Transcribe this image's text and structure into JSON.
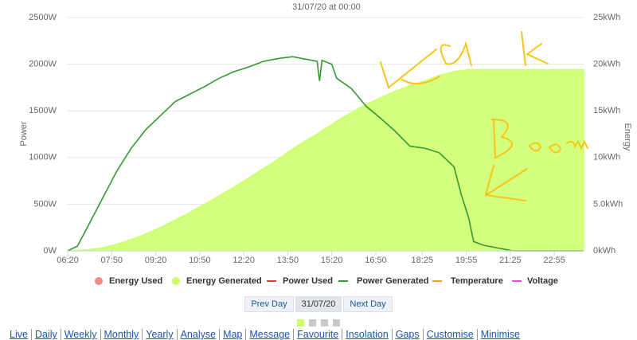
{
  "chart_data": {
    "type": "line",
    "title": "31/07/20 at 00:00",
    "y_label": "Power",
    "y2_label": "Energy",
    "x": [
      "06:20",
      "06:40",
      "07:00",
      "07:30",
      "08:00",
      "08:30",
      "09:00",
      "09:30",
      "10:00",
      "10:30",
      "11:00",
      "11:30",
      "12:00",
      "12:30",
      "13:00",
      "13:30",
      "14:00",
      "14:30",
      "14:50",
      "14:55",
      "15:00",
      "15:20",
      "15:30",
      "16:00",
      "16:30",
      "17:00",
      "17:30",
      "18:00",
      "18:30",
      "19:00",
      "19:30",
      "19:45",
      "20:00",
      "20:10",
      "20:30",
      "21:00",
      "21:30",
      "22:00",
      "22:30",
      "23:00",
      "23:30",
      "23:55"
    ],
    "xlim": [
      "06:20",
      "23:55"
    ],
    "xticks": [
      "06:20",
      "07:50",
      "09:20",
      "10:50",
      "12:20",
      "13:50",
      "15:20",
      "16:50",
      "18:25",
      "19:55",
      "21:25",
      "22:55"
    ],
    "ylim": [
      0,
      2500
    ],
    "yticks": [
      {
        "value": 0,
        "label": "0W"
      },
      {
        "value": 500,
        "label": "500W"
      },
      {
        "value": 1000,
        "label": "1000W"
      },
      {
        "value": 1500,
        "label": "1500W"
      },
      {
        "value": 2000,
        "label": "2000W"
      },
      {
        "value": 2500,
        "label": "2500W"
      }
    ],
    "y2lim": [
      0,
      25
    ],
    "y2ticks": [
      {
        "value": 0,
        "label": "0kWh"
      },
      {
        "value": 5,
        "label": "5.0kWh"
      },
      {
        "value": 10,
        "label": "10kWh"
      },
      {
        "value": 15,
        "label": "15kWh"
      },
      {
        "value": 20,
        "label": "20kWh"
      },
      {
        "value": 25,
        "label": "25kWh"
      }
    ],
    "grid": true,
    "series": [
      {
        "name": "Energy Used",
        "color": "#f28b8b",
        "axis": "y2",
        "values": [
          null,
          null,
          null,
          null,
          null,
          null,
          null,
          null,
          null,
          null,
          null,
          null,
          null,
          null,
          null,
          null,
          null,
          null,
          null,
          null,
          null,
          null,
          null,
          null,
          null,
          null,
          null,
          null,
          null,
          null,
          null,
          null,
          null,
          null,
          null,
          null,
          null,
          null,
          null,
          null,
          null,
          null
        ]
      },
      {
        "name": "Energy Generated",
        "color": "#ccff66",
        "axis": "y2",
        "values": [
          0,
          0.05,
          0.1,
          0.3,
          0.7,
          1.2,
          1.8,
          2.5,
          3.3,
          4.1,
          5.0,
          5.9,
          6.8,
          7.8,
          8.8,
          9.8,
          10.9,
          11.9,
          12.5,
          12.7,
          12.9,
          13.5,
          13.9,
          14.8,
          15.7,
          16.4,
          17.1,
          17.7,
          18.2,
          18.8,
          19.2,
          19.3,
          19.4,
          19.4,
          19.4,
          19.4,
          19.4,
          19.4,
          19.4,
          19.4,
          19.4,
          19.4
        ]
      },
      {
        "name": "Power Used",
        "color": "#e03c3c",
        "values": [
          null,
          null,
          null,
          null,
          null,
          null,
          null,
          null,
          null,
          null,
          null,
          null,
          null,
          null,
          null,
          null,
          null,
          null,
          null,
          null,
          null,
          null,
          null,
          null,
          null,
          null,
          null,
          null,
          null,
          null,
          null,
          null,
          null,
          null,
          null,
          null,
          null,
          null,
          null,
          null,
          null,
          null
        ]
      },
      {
        "name": "Power Generated",
        "color": "#339933",
        "values": [
          0,
          50,
          250,
          550,
          850,
          1100,
          1300,
          1450,
          1600,
          1680,
          1760,
          1850,
          1920,
          1970,
          2030,
          2060,
          2080,
          2050,
          2030,
          1820,
          2040,
          2000,
          1850,
          1740,
          1550,
          1420,
          1280,
          1120,
          1100,
          1050,
          900,
          600,
          350,
          100,
          60,
          30,
          0,
          0,
          0,
          0,
          0,
          0
        ]
      },
      {
        "name": "Temperature",
        "color": "#f0a030",
        "values": [
          null,
          null,
          null,
          null,
          null,
          null,
          null,
          null,
          null,
          null,
          null,
          null,
          null,
          null,
          null,
          null,
          null,
          null,
          null,
          null,
          null,
          null,
          null,
          null,
          null,
          null,
          null,
          null,
          null,
          null,
          null,
          null,
          null,
          null,
          null,
          null,
          null,
          null,
          null,
          null,
          null,
          null
        ]
      },
      {
        "name": "Voltage",
        "color": "#e050e0",
        "values": [
          null,
          null,
          null,
          null,
          null,
          null,
          null,
          null,
          null,
          null,
          null,
          null,
          null,
          null,
          null,
          null,
          null,
          null,
          null,
          null,
          null,
          null,
          null,
          null,
          null,
          null,
          null,
          null,
          null,
          null,
          null,
          null,
          null,
          null,
          null,
          null,
          null,
          null,
          null,
          null,
          null,
          null
        ]
      }
    ]
  },
  "controls": {
    "prev": "Prev Day",
    "date": "31/07/20",
    "next": "Next Day"
  },
  "nav": [
    "Live",
    "Daily",
    "Weekly",
    "Monthly",
    "Yearly",
    "Analyse",
    "Map",
    "Message",
    "Favourite",
    "Insolation",
    "Gaps",
    "Customise",
    "Minimise"
  ]
}
